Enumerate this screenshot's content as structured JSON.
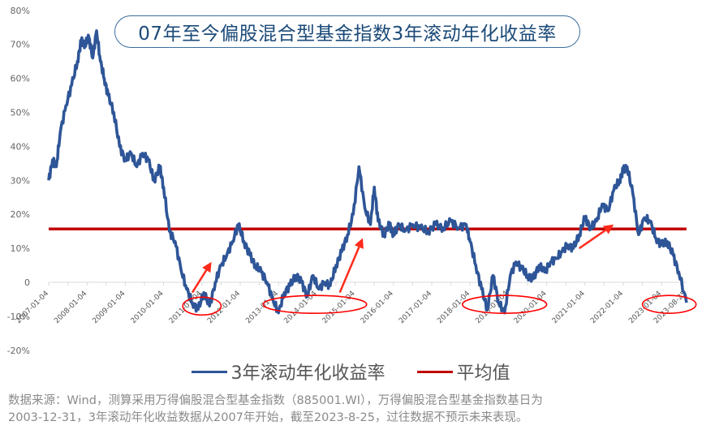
{
  "title": "07年至今偏股混合型基金指数3年滚动年化收益率",
  "legend": [
    {
      "label": "3年滚动年化收益率",
      "color": "#2e5597"
    },
    {
      "label": "平均值",
      "color": "#c00000"
    }
  ],
  "note": {
    "line1": "数据来源：Wind，测算采用万得偏股混合型基金指数（885001.WI），万得偏股混合型基金指数基日为",
    "line2": "2003-12-31，3年滚动年化收益数据从2007年开始，截至2023-8-25，过往数据不预示未来表现。"
  },
  "colors": {
    "series": "#2e5597",
    "average": "#c00000",
    "annotation": "#ff0000",
    "title_border": "#3a6e9c",
    "title_text": "#1b4a78"
  },
  "chart_data": {
    "type": "line",
    "title": "07年至今偏股混合型基金指数3年滚动年化收益率",
    "xlabel": "",
    "ylabel": "",
    "ylim": [
      -0.2,
      0.8
    ],
    "yticks": [
      "80%",
      "70%",
      "60%",
      "50%",
      "40%",
      "30%",
      "20%",
      "10%",
      "0",
      "-10%",
      "-20%"
    ],
    "xticks": [
      "2007-01-04",
      "2008-01-04",
      "2009-01-04",
      "2010-01-04",
      "2011-01-04",
      "2012-01-04",
      "2013-01-04",
      "2014-01-04",
      "2015-01-04",
      "2016-01-04",
      "2017-01-04",
      "2018-01-04",
      "2019-01-04",
      "2020-01-04",
      "2021-01-04",
      "2022-01-04",
      "2023-01-04",
      "2023-08-25"
    ],
    "grid": false,
    "legend_position": "bottom",
    "series": [
      {
        "name": "3年滚动年化收益率",
        "x": [
          2007.0,
          2007.1,
          2007.2,
          2007.3,
          2007.45,
          2007.6,
          2007.75,
          2007.85,
          2007.95,
          2008.05,
          2008.15,
          2008.25,
          2008.35,
          2008.45,
          2008.55,
          2008.7,
          2008.85,
          2009.0,
          2009.15,
          2009.3,
          2009.45,
          2009.6,
          2009.75,
          2009.9,
          2010.0,
          2010.15,
          2010.3,
          2010.45,
          2010.6,
          2010.75,
          2010.9,
          2011.05,
          2011.2,
          2011.35,
          2011.5,
          2011.65,
          2011.8,
          2011.95,
          2012.1,
          2012.25,
          2012.4,
          2012.55,
          2012.7,
          2012.85,
          2013.0,
          2013.15,
          2013.3,
          2013.45,
          2013.6,
          2013.75,
          2013.9,
          2014.05,
          2014.2,
          2014.35,
          2014.5,
          2014.65,
          2014.8,
          2014.95,
          2015.1,
          2015.25,
          2015.4,
          2015.5,
          2015.6,
          2015.75,
          2015.9,
          2016.0,
          2016.15,
          2016.3,
          2016.5,
          2016.7,
          2016.9,
          2017.1,
          2017.3,
          2017.5,
          2017.7,
          2017.9,
          2018.0,
          2018.15,
          2018.3,
          2018.45,
          2018.6,
          2018.75,
          2018.9,
          2019.05,
          2019.2,
          2019.35,
          2019.5,
          2019.65,
          2019.8,
          2019.95,
          2020.1,
          2020.25,
          2020.4,
          2020.55,
          2020.7,
          2020.85,
          2021.0,
          2021.15,
          2021.3,
          2021.45,
          2021.6,
          2021.75,
          2021.9,
          2022.0,
          2022.1,
          2022.25,
          2022.4,
          2022.55,
          2022.7,
          2022.85,
          2023.0,
          2023.15,
          2023.3,
          2023.45,
          2023.65
        ],
        "values": [
          0.3,
          0.36,
          0.34,
          0.44,
          0.52,
          0.58,
          0.65,
          0.71,
          0.7,
          0.72,
          0.66,
          0.74,
          0.65,
          0.6,
          0.55,
          0.5,
          0.4,
          0.36,
          0.38,
          0.34,
          0.38,
          0.36,
          0.3,
          0.34,
          0.28,
          0.15,
          0.12,
          0.04,
          -0.02,
          -0.06,
          -0.08,
          -0.03,
          -0.07,
          0.0,
          0.05,
          0.08,
          0.12,
          0.17,
          0.12,
          0.08,
          0.05,
          0.03,
          0.0,
          -0.05,
          -0.09,
          -0.03,
          -0.01,
          0.02,
          0.0,
          -0.04,
          0.02,
          -0.02,
          0.0,
          -0.01,
          0.05,
          0.09,
          0.14,
          0.2,
          0.34,
          0.22,
          0.17,
          0.28,
          0.18,
          0.14,
          0.17,
          0.14,
          0.17,
          0.15,
          0.17,
          0.16,
          0.15,
          0.17,
          0.16,
          0.18,
          0.16,
          0.17,
          0.12,
          0.05,
          -0.02,
          -0.08,
          0.02,
          -0.06,
          -0.09,
          0.02,
          0.06,
          0.04,
          0.02,
          0.01,
          0.05,
          0.03,
          0.06,
          0.07,
          0.09,
          0.11,
          0.1,
          0.14,
          0.19,
          0.16,
          0.18,
          0.23,
          0.21,
          0.27,
          0.3,
          0.33,
          0.34,
          0.26,
          0.14,
          0.19,
          0.18,
          0.13,
          0.11,
          0.12,
          0.08,
          0.03,
          -0.06
        ],
        "color": "#2e5597"
      },
      {
        "name": "平均值",
        "x": [
          2007.0,
          2023.65
        ],
        "values": [
          0.157,
          0.157
        ],
        "color": "#c00000"
      }
    ],
    "annotations": [
      {
        "type": "ellipse",
        "x_range": [
          2010.5,
          2011.5
        ],
        "y": -0.07
      },
      {
        "type": "ellipse",
        "x_range": [
          2012.6,
          2015.3
        ],
        "y": -0.065
      },
      {
        "type": "ellipse",
        "x_range": [
          2017.8,
          2020.0
        ],
        "y": -0.065
      },
      {
        "type": "ellipse",
        "x_range": [
          2022.5,
          2023.9
        ],
        "y": -0.065
      },
      {
        "type": "arrow",
        "from": [
          2010.75,
          -0.03
        ],
        "to": [
          2011.25,
          0.06
        ]
      },
      {
        "type": "arrow",
        "from": [
          2014.6,
          -0.03
        ],
        "to": [
          2015.2,
          0.13
        ]
      },
      {
        "type": "arrow",
        "from": [
          2020.85,
          0.1
        ],
        "to": [
          2021.75,
          0.17
        ]
      }
    ]
  }
}
